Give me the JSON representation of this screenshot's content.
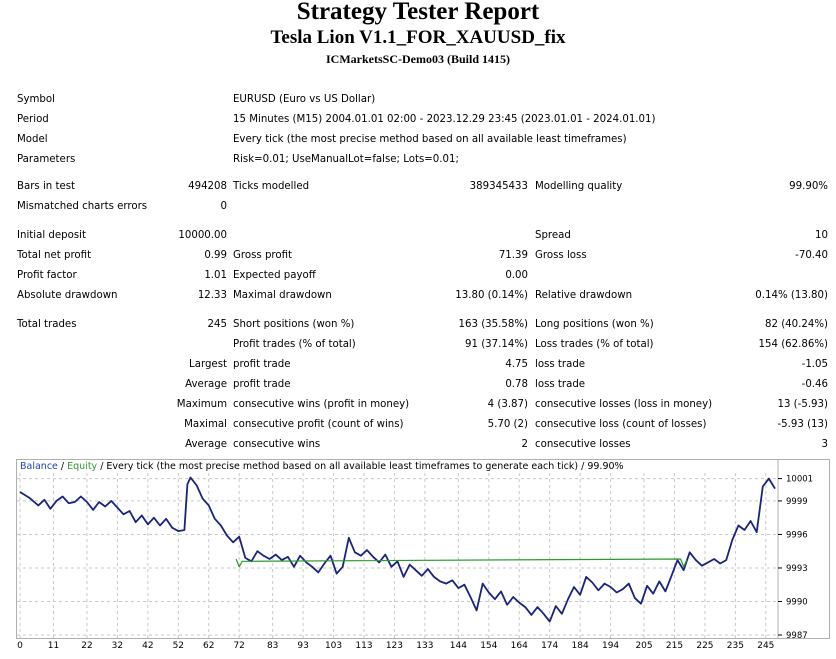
{
  "header": {
    "title": "Strategy Tester Report",
    "expert": "Tesla Lion V1.1_FOR_XAUUSD_fix",
    "server": "ICMarketsSC-Demo03 (Build 1415)"
  },
  "info": {
    "symbol_label": "Symbol",
    "symbol_value": "EURUSD (Euro vs US Dollar)",
    "period_label": "Period",
    "period_value": "15 Minutes (M15) 2004.01.01 02:00 - 2023.12.29 23:45 (2023.01.01 - 2024.01.01)",
    "model_label": "Model",
    "model_value": "Every tick (the most precise method based on all available least timeframes)",
    "params_label": "Parameters",
    "params_value": "Risk=0.01; UseManualLot=false; Lots=0.01;"
  },
  "stats": {
    "bars_label": "Bars in test",
    "bars_value": "494208",
    "ticks_label": "Ticks modelled",
    "ticks_value": "389345433",
    "quality_label": "Modelling quality",
    "quality_value": "99.90%",
    "mismatch_label": "Mismatched charts errors",
    "mismatch_value": "0",
    "deposit_label": "Initial deposit",
    "deposit_value": "10000.00",
    "spread_label": "Spread",
    "spread_value": "10",
    "net_label": "Total net profit",
    "net_value": "0.99",
    "gprofit_label": "Gross profit",
    "gprofit_value": "71.39",
    "gloss_label": "Gross loss",
    "gloss_value": "-70.40",
    "pf_label": "Profit factor",
    "pf_value": "1.01",
    "ep_label": "Expected payoff",
    "ep_value": "0.00",
    "absdd_label": "Absolute drawdown",
    "absdd_value": "12.33",
    "maxdd_label": "Maximal drawdown",
    "maxdd_value": "13.80 (0.14%)",
    "reldd_label": "Relative drawdown",
    "reldd_value": "0.14% (13.80)"
  },
  "trades": {
    "total_label": "Total trades",
    "total_value": "245",
    "short_label": "Short positions (won %)",
    "short_value": "163 (35.58%)",
    "long_label": "Long positions (won %)",
    "long_value": "82 (40.24%)",
    "ptrades_label": "Profit trades (% of total)",
    "ptrades_value": "91 (37.14%)",
    "ltrades_label": "Loss trades (% of total)",
    "ltrades_value": "154 (62.86%)",
    "largest_prefix": "Largest",
    "largest_profit_label": "profit trade",
    "largest_profit_value": "4.75",
    "largest_loss_label": "loss trade",
    "largest_loss_value": "-1.05",
    "average_prefix": "Average",
    "average_profit_label": "profit trade",
    "average_profit_value": "0.78",
    "average_loss_label": "loss trade",
    "average_loss_value": "-0.46",
    "maximum_prefix": "Maximum",
    "max_wins_label": "consecutive wins (profit in money)",
    "max_wins_value": "4 (3.87)",
    "max_losses_label": "consecutive losses (loss in money)",
    "max_losses_value": "13 (-5.93)",
    "maximal_prefix": "Maximal",
    "maximal_profit_label": "consecutive profit (count of wins)",
    "maximal_profit_value": "5.70 (2)",
    "maximal_loss_label": "consecutive loss (count of losses)",
    "maximal_loss_value": "-5.93 (13)",
    "average2_prefix": "Average",
    "avg_wins_label": "consecutive wins",
    "avg_wins_value": "2",
    "avg_losses_label": "consecutive losses",
    "avg_losses_value": "3"
  },
  "legend": {
    "balance": "Balance",
    "sep1": " / ",
    "equity": "Equity",
    "rest": " / Every tick (the most precise method based on all available least timeframes to generate each tick) / 99.90%"
  },
  "colors": {
    "balance": "#1a237e",
    "equity": "#2e9a2e",
    "grid": "#c8c8c8",
    "border": "#b0b0b0"
  },
  "chart_data": {
    "type": "line",
    "x_ticks": [
      0,
      11,
      22,
      32,
      42,
      52,
      62,
      72,
      83,
      93,
      103,
      113,
      123,
      133,
      144,
      154,
      164,
      174,
      184,
      194,
      205,
      215,
      225,
      235,
      245
    ],
    "y_ticks": [
      10001,
      9999,
      9996,
      9993,
      9990,
      9987
    ],
    "xlim": [
      0,
      249
    ],
    "ylim": [
      9987,
      10001.5
    ],
    "series": [
      {
        "name": "Balance",
        "x": [
          0,
          3,
          6,
          8,
          10,
          12,
          14,
          16,
          18,
          20,
          22,
          24,
          26,
          28,
          30,
          32,
          34,
          36,
          38,
          40,
          42,
          44,
          46,
          48,
          50,
          52,
          54,
          55,
          56,
          58,
          60,
          62,
          64,
          66,
          68,
          70,
          72,
          74,
          76,
          78,
          80,
          82,
          84,
          86,
          88,
          90,
          92,
          94,
          96,
          98,
          100,
          102,
          104,
          106,
          108,
          110,
          112,
          114,
          116,
          118,
          120,
          122,
          124,
          126,
          128,
          130,
          132,
          134,
          136,
          138,
          140,
          142,
          144,
          146,
          148,
          150,
          152,
          154,
          156,
          158,
          160,
          162,
          164,
          166,
          168,
          170,
          172,
          174,
          176,
          178,
          180,
          182,
          184,
          186,
          188,
          190,
          192,
          194,
          196,
          198,
          200,
          202,
          204,
          206,
          208,
          210,
          212,
          214,
          216,
          218,
          220,
          222,
          224,
          226,
          228,
          230,
          232,
          234,
          236,
          238,
          240,
          242,
          244,
          246,
          248
        ],
        "y": [
          9999.8,
          9999.3,
          9998.6,
          9999.1,
          9998.3,
          9999.0,
          9999.4,
          9998.8,
          9998.9,
          9999.4,
          9998.9,
          9998.2,
          9998.9,
          9998.5,
          9999.0,
          9998.4,
          9997.8,
          9998.1,
          9997.1,
          9997.7,
          9996.9,
          9997.5,
          9996.8,
          9997.4,
          9996.6,
          9996.3,
          9996.4,
          10000.5,
          10001.1,
          10000.4,
          9999.2,
          9998.6,
          9997.4,
          9996.8,
          9995.9,
          9995.3,
          9995.8,
          9993.9,
          9993.6,
          9994.5,
          9994.1,
          9993.8,
          9994.2,
          9993.7,
          9994.0,
          9993.1,
          9994.1,
          9993.5,
          9993.1,
          9992.6,
          9993.4,
          9994.1,
          9992.5,
          9993.1,
          9995.7,
          9994.4,
          9994.1,
          9994.6,
          9994.0,
          9993.5,
          9994.2,
          9993.1,
          9993.6,
          9992.2,
          9993.3,
          9992.8,
          9992.3,
          9992.9,
          9992.2,
          9991.8,
          9991.6,
          9991.9,
          9991.2,
          9991.5,
          9990.4,
          9989.2,
          9991.6,
          9990.8,
          9990.2,
          9990.9,
          9989.7,
          9990.4,
          9989.9,
          9989.5,
          9988.8,
          9989.5,
          9988.9,
          9988.2,
          9989.6,
          9988.9,
          9990.2,
          9991.3,
          9990.6,
          9992.2,
          9991.7,
          9991.0,
          9991.6,
          9991.3,
          9990.8,
          9991.1,
          9991.6,
          9990.3,
          9989.8,
          9991.4,
          9990.7,
          9991.8,
          9990.9,
          9992.3,
          9993.7,
          9992.8,
          9994.4,
          9993.7,
          9993.2,
          9993.5,
          9993.8,
          9993.4,
          9993.7,
          9995.5,
          9996.8,
          9996.4,
          9997.2,
          9996.2,
          10000.3,
          10001.0,
          10000.1
        ]
      },
      {
        "name": "Equity",
        "x": [
          71,
          72,
          73,
          217,
          218,
          219
        ],
        "y": [
          9993.8,
          9993.1,
          9993.6,
          9993.8,
          9993.1,
          9993.7
        ]
      }
    ],
    "grid": true
  }
}
